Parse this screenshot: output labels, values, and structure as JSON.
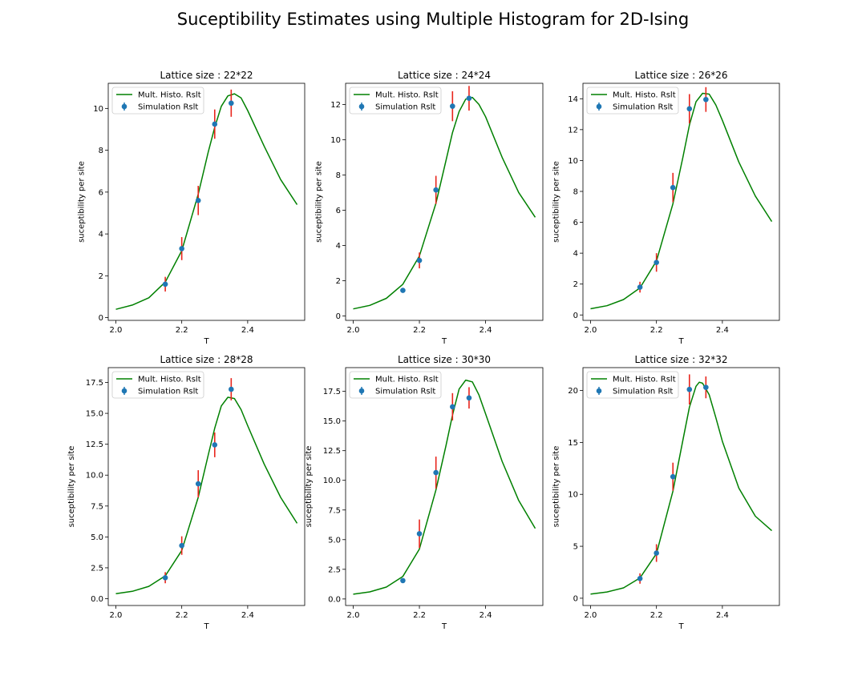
{
  "figure": {
    "title": "Suceptibility Estimates using Multiple Histogram for 2D-Ising"
  },
  "colors": {
    "fit_line": "#008000",
    "points": "#1f77b4",
    "errorbars": "#e8251c",
    "axes": "#000000"
  },
  "chart_data": [
    {
      "type": "line",
      "title": "Lattice size : 22*22",
      "xlabel": "T",
      "ylabel": "suceptibility per site",
      "xlim": [
        1.977,
        2.573
      ],
      "ylim": [
        -0.13,
        11.2
      ],
      "xticks": [
        2.0,
        2.2,
        2.4
      ],
      "xticklabels": [
        "2.0",
        "2.2",
        "2.4"
      ],
      "yticks": [
        0,
        2,
        4,
        6,
        8,
        10
      ],
      "yticklabels": [
        "0",
        "2",
        "4",
        "6",
        "8",
        "10"
      ],
      "legend": {
        "position": "top-left",
        "entries": [
          "Mult. Histo. Rslt",
          "Simulation Rslt"
        ]
      },
      "series": [
        {
          "name": "Mult. Histo. Rslt",
          "kind": "line",
          "x": [
            2.0,
            2.05,
            2.1,
            2.15,
            2.2,
            2.25,
            2.28,
            2.3,
            2.32,
            2.34,
            2.36,
            2.38,
            2.4,
            2.45,
            2.5,
            2.55
          ],
          "y": [
            0.4,
            0.6,
            0.95,
            1.7,
            3.2,
            5.9,
            7.9,
            9.1,
            10.1,
            10.6,
            10.7,
            10.5,
            9.9,
            8.2,
            6.6,
            5.4
          ]
        },
        {
          "name": "Simulation Rslt",
          "kind": "errorbar",
          "x": [
            2.15,
            2.2,
            2.25,
            2.3,
            2.35
          ],
          "y": [
            1.6,
            3.3,
            5.6,
            9.25,
            10.25
          ],
          "yerr": [
            0.35,
            0.55,
            0.7,
            0.7,
            0.65
          ]
        }
      ]
    },
    {
      "type": "line",
      "title": "Lattice size : 24*24",
      "xlabel": "T",
      "ylabel": "suceptibility per site",
      "xlim": [
        1.977,
        2.573
      ],
      "ylim": [
        -0.25,
        13.2
      ],
      "xticks": [
        2.0,
        2.2,
        2.4
      ],
      "xticklabels": [
        "2.0",
        "2.2",
        "2.4"
      ],
      "yticks": [
        0,
        2,
        4,
        6,
        8,
        10,
        12
      ],
      "yticklabels": [
        "0",
        "2",
        "4",
        "6",
        "8",
        "10",
        "12"
      ],
      "legend": {
        "position": "top-left",
        "entries": [
          "Mult. Histo. Rslt",
          "Simulation Rslt"
        ]
      },
      "series": [
        {
          "name": "Mult. Histo. Rslt",
          "kind": "line",
          "x": [
            2.0,
            2.05,
            2.1,
            2.15,
            2.2,
            2.25,
            2.28,
            2.3,
            2.32,
            2.34,
            2.36,
            2.38,
            2.4,
            2.45,
            2.5,
            2.55
          ],
          "y": [
            0.4,
            0.6,
            1.0,
            1.8,
            3.4,
            6.4,
            8.8,
            10.4,
            11.6,
            12.3,
            12.4,
            12.0,
            11.3,
            9.0,
            7.0,
            5.6
          ]
        },
        {
          "name": "Simulation Rslt",
          "kind": "errorbar",
          "x": [
            2.15,
            2.2,
            2.25,
            2.3,
            2.35
          ],
          "y": [
            1.45,
            3.15,
            7.15,
            11.9,
            12.35
          ],
          "yerr": [
            0.05,
            0.45,
            0.8,
            0.85,
            0.7
          ]
        }
      ]
    },
    {
      "type": "line",
      "title": "Lattice size : 26*26",
      "xlabel": "T",
      "ylabel": "suceptibility per site",
      "xlim": [
        1.977,
        2.573
      ],
      "ylim": [
        -0.35,
        15.0
      ],
      "xticks": [
        2.0,
        2.2,
        2.4
      ],
      "xticklabels": [
        "2.0",
        "2.2",
        "2.4"
      ],
      "yticks": [
        0,
        2,
        4,
        6,
        8,
        10,
        12,
        14
      ],
      "yticklabels": [
        "0",
        "2",
        "4",
        "6",
        "8",
        "10",
        "12",
        "14"
      ],
      "legend": {
        "position": "top-left",
        "entries": [
          "Mult. Histo. Rslt",
          "Simulation Rslt"
        ]
      },
      "series": [
        {
          "name": "Mult. Histo. Rslt",
          "kind": "line",
          "x": [
            2.0,
            2.05,
            2.1,
            2.15,
            2.2,
            2.25,
            2.28,
            2.3,
            2.32,
            2.34,
            2.36,
            2.38,
            2.4,
            2.45,
            2.5,
            2.55
          ],
          "y": [
            0.4,
            0.6,
            1.0,
            1.75,
            3.5,
            7.2,
            10.2,
            12.3,
            13.8,
            14.35,
            14.3,
            13.6,
            12.6,
            9.9,
            7.7,
            6.05
          ]
        },
        {
          "name": "Simulation Rslt",
          "kind": "errorbar",
          "x": [
            2.15,
            2.2,
            2.25,
            2.3,
            2.35
          ],
          "y": [
            1.8,
            3.4,
            8.25,
            13.35,
            13.95
          ],
          "yerr": [
            0.35,
            0.6,
            0.95,
            0.95,
            0.8
          ]
        }
      ]
    },
    {
      "type": "line",
      "title": "Lattice size : 28*28",
      "xlabel": "T",
      "ylabel": "suceptibility per site",
      "xlim": [
        1.977,
        2.573
      ],
      "ylim": [
        -0.55,
        18.7
      ],
      "xticks": [
        2.0,
        2.2,
        2.4
      ],
      "xticklabels": [
        "2.0",
        "2.2",
        "2.4"
      ],
      "yticks": [
        0.0,
        2.5,
        5.0,
        7.5,
        10.0,
        12.5,
        15.0,
        17.5
      ],
      "yticklabels": [
        "0.0",
        "2.5",
        "5.0",
        "7.5",
        "10.0",
        "12.5",
        "15.0",
        "17.5"
      ],
      "legend": {
        "position": "top-left",
        "entries": [
          "Mult. Histo. Rslt",
          "Simulation Rslt"
        ]
      },
      "series": [
        {
          "name": "Mult. Histo. Rslt",
          "kind": "line",
          "x": [
            2.0,
            2.05,
            2.1,
            2.15,
            2.2,
            2.25,
            2.28,
            2.3,
            2.32,
            2.34,
            2.36,
            2.38,
            2.4,
            2.45,
            2.5,
            2.55
          ],
          "y": [
            0.4,
            0.6,
            1.0,
            1.85,
            3.9,
            8.2,
            11.6,
            13.8,
            15.6,
            16.3,
            16.2,
            15.3,
            14.0,
            10.9,
            8.2,
            6.1
          ]
        },
        {
          "name": "Simulation Rslt",
          "kind": "errorbar",
          "x": [
            2.15,
            2.2,
            2.25,
            2.3,
            2.35
          ],
          "y": [
            1.7,
            4.3,
            9.3,
            12.45,
            16.95
          ],
          "yerr": [
            0.45,
            0.75,
            1.1,
            1.0,
            0.9
          ]
        }
      ]
    },
    {
      "type": "line",
      "title": "Lattice size : 30*30",
      "xlabel": "T",
      "ylabel": "suceptibility per site",
      "xlim": [
        1.977,
        2.573
      ],
      "ylim": [
        -0.55,
        19.5
      ],
      "xticks": [
        2.0,
        2.2,
        2.4
      ],
      "xticklabels": [
        "2.0",
        "2.2",
        "2.4"
      ],
      "yticks": [
        0.0,
        2.5,
        5.0,
        7.5,
        10.0,
        12.5,
        15.0,
        17.5
      ],
      "yticklabels": [
        "0.0",
        "2.5",
        "5.0",
        "7.5",
        "10.0",
        "12.5",
        "15.0",
        "17.5"
      ],
      "legend": {
        "position": "top-left",
        "entries": [
          "Mult. Histo. Rslt",
          "Simulation Rslt"
        ]
      },
      "series": [
        {
          "name": "Mult. Histo. Rslt",
          "kind": "line",
          "x": [
            2.0,
            2.05,
            2.1,
            2.15,
            2.2,
            2.25,
            2.28,
            2.3,
            2.32,
            2.34,
            2.36,
            2.38,
            2.4,
            2.45,
            2.5,
            2.55
          ],
          "y": [
            0.4,
            0.6,
            1.0,
            1.9,
            4.2,
            9.2,
            12.9,
            15.5,
            17.7,
            18.45,
            18.3,
            17.2,
            15.6,
            11.6,
            8.3,
            5.95
          ]
        },
        {
          "name": "Simulation Rslt",
          "kind": "errorbar",
          "x": [
            2.15,
            2.2,
            2.25,
            2.3,
            2.35
          ],
          "y": [
            1.55,
            5.5,
            10.65,
            16.2,
            16.95
          ],
          "yerr": [
            0.05,
            1.2,
            1.35,
            1.15,
            0.9
          ]
        }
      ]
    },
    {
      "type": "line",
      "title": "Lattice size : 32*32",
      "xlabel": "T",
      "ylabel": "suceptibility per site",
      "xlim": [
        1.977,
        2.573
      ],
      "ylim": [
        -0.7,
        22.2
      ],
      "xticks": [
        2.0,
        2.2,
        2.4
      ],
      "xticklabels": [
        "2.0",
        "2.2",
        "2.4"
      ],
      "yticks": [
        0,
        5,
        10,
        15,
        20
      ],
      "yticklabels": [
        "0",
        "5",
        "10",
        "15",
        "20"
      ],
      "legend": {
        "position": "top-left",
        "entries": [
          "Mult. Histo. Rslt",
          "Simulation Rslt"
        ]
      },
      "series": [
        {
          "name": "Mult. Histo. Rslt",
          "kind": "line",
          "x": [
            2.0,
            2.05,
            2.1,
            2.15,
            2.2,
            2.25,
            2.28,
            2.3,
            2.32,
            2.33,
            2.34,
            2.36,
            2.38,
            2.4,
            2.45,
            2.5,
            2.55
          ],
          "y": [
            0.4,
            0.6,
            1.0,
            1.95,
            4.3,
            10.3,
            15.2,
            18.4,
            20.4,
            20.8,
            20.7,
            19.6,
            17.4,
            15.1,
            10.6,
            7.9,
            6.5
          ]
        },
        {
          "name": "Simulation Rslt",
          "kind": "errorbar",
          "x": [
            2.15,
            2.2,
            2.25,
            2.3,
            2.35
          ],
          "y": [
            1.9,
            4.35,
            11.7,
            20.1,
            20.3
          ],
          "yerr": [
            0.5,
            0.85,
            1.35,
            1.45,
            1.05
          ]
        }
      ]
    }
  ]
}
